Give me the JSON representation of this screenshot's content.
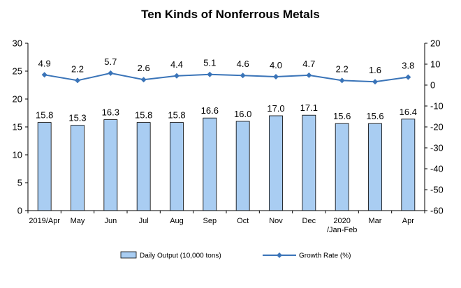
{
  "chart_data": {
    "type": "bar",
    "title": "Ten Kinds of Nonferrous Metals",
    "categories": [
      [
        "2019/Apr"
      ],
      [
        "May"
      ],
      [
        "Jun"
      ],
      [
        "Jul"
      ],
      [
        "Aug"
      ],
      [
        "Sep"
      ],
      [
        "Oct"
      ],
      [
        "Nov"
      ],
      [
        "Dec"
      ],
      [
        "2020",
        "/Jan-Feb"
      ],
      [
        "Mar"
      ],
      [
        "Apr"
      ]
    ],
    "series": [
      {
        "name": "Daily Output (10,000 tons)",
        "type": "bar",
        "axis": "left",
        "values": [
          15.8,
          15.3,
          16.3,
          15.8,
          15.8,
          16.6,
          16.0,
          17.0,
          17.1,
          15.6,
          15.6,
          16.4
        ]
      },
      {
        "name": "Growth Rate (%)",
        "type": "line",
        "axis": "right",
        "values": [
          4.9,
          2.2,
          5.7,
          2.6,
          4.4,
          5.1,
          4.6,
          4.0,
          4.7,
          2.2,
          1.6,
          3.8
        ]
      }
    ],
    "y_left": {
      "range": [
        0,
        30
      ],
      "ticks": [
        "0",
        "5",
        "10",
        "15",
        "20",
        "25",
        "30"
      ]
    },
    "y_right": {
      "range": [
        -60,
        20
      ],
      "ticks": [
        "-60",
        "-50",
        "-40",
        "-30",
        "-20",
        "-10",
        "0",
        "10",
        "20"
      ]
    },
    "grid": false,
    "legend_position": "bottom",
    "colors": {
      "bar_fill": "#a9cdf2",
      "bar_stroke": "#000000",
      "line": "#3a74b8",
      "axis": "#000000"
    }
  }
}
